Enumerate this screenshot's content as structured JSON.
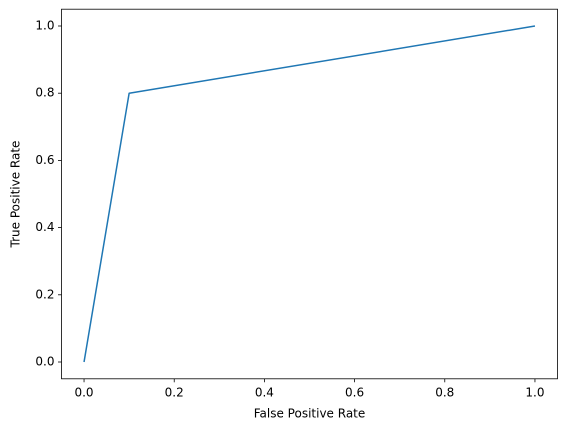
{
  "chart_data": {
    "type": "line",
    "x_label": "False Positive Rate",
    "y_label": "True Positive Rate",
    "x": [
      0,
      0.1,
      1
    ],
    "values": [
      0,
      0.8,
      1
    ],
    "color": "#1f77b4",
    "xlim": [
      -0.05,
      1.05
    ],
    "ylim": [
      -0.05,
      1.05
    ],
    "xticks": [
      {
        "value": 0,
        "label": "0.0"
      },
      0.2,
      0.4,
      0.6,
      0.8,
      {
        "value": 1,
        "label": "1.0"
      }
    ],
    "yticks": [
      {
        "value": 0,
        "label": "0.0"
      },
      0.2,
      0.4,
      0.6,
      0.8,
      {
        "value": 1,
        "label": "1.0"
      }
    ],
    "grid": false
  }
}
